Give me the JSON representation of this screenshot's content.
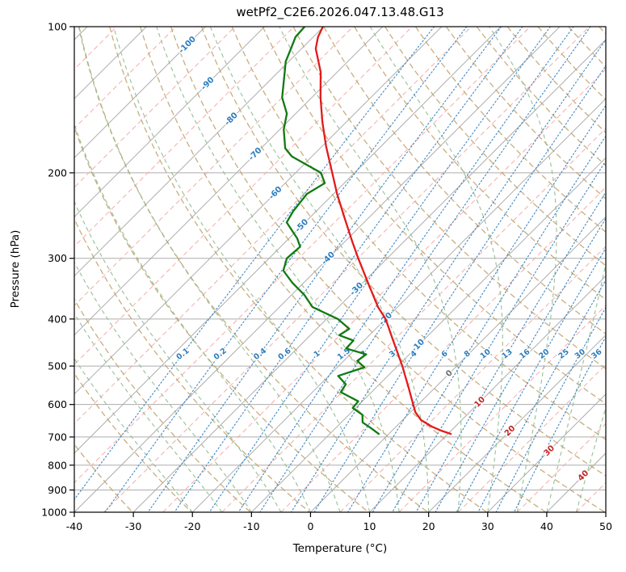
{
  "chart_data": {
    "type": "line",
    "title": "wetPf2_C2E6.2026.047.13.48.G13",
    "xlabel": "Temperature (°C)",
    "ylabel": "Pressure (hPa)",
    "x_range": [
      -40,
      50
    ],
    "p_range": [
      100,
      1000
    ],
    "y_scale": "log",
    "skew_degrees": 45,
    "x_ticks": [
      -40,
      -30,
      -20,
      -10,
      0,
      10,
      20,
      30,
      40,
      50
    ],
    "y_ticks": [
      100,
      200,
      300,
      400,
      500,
      600,
      700,
      800,
      900,
      1000
    ],
    "series": [
      {
        "name": "temperature",
        "color": "#e31a1a",
        "units": {
          "p": "hPa",
          "t": "degC"
        },
        "points": [
          [
            100,
            -80.1
          ],
          [
            105,
            -79.2
          ],
          [
            111,
            -77.6
          ],
          [
            124,
            -72.8
          ],
          [
            140,
            -68.5
          ],
          [
            157,
            -64.1
          ],
          [
            176,
            -59.4
          ],
          [
            199,
            -54.0
          ],
          [
            221,
            -49.4
          ],
          [
            248,
            -44.0
          ],
          [
            278,
            -38.6
          ],
          [
            300,
            -34.9
          ],
          [
            337,
            -29.1
          ],
          [
            378,
            -23.3
          ],
          [
            400,
            -20.0
          ],
          [
            440,
            -15.4
          ],
          [
            470,
            -12.2
          ],
          [
            500,
            -9.2
          ],
          [
            555,
            -4.4
          ],
          [
            598,
            -1.0
          ],
          [
            622,
            0.8
          ],
          [
            646,
            3.1
          ],
          [
            666,
            6.0
          ],
          [
            679,
            8.3
          ],
          [
            690,
            10.5
          ]
        ]
      },
      {
        "name": "dewpoint",
        "color": "#117a11",
        "units": {
          "p": "hPa",
          "t": "degC"
        },
        "points": [
          [
            100,
            -83.2
          ],
          [
            105,
            -83.0
          ],
          [
            111,
            -81.8
          ],
          [
            118,
            -80.5
          ],
          [
            124,
            -78.9
          ],
          [
            140,
            -75.0
          ],
          [
            151,
            -71.5
          ],
          [
            163,
            -69.3
          ],
          [
            178,
            -65.9
          ],
          [
            185,
            -63.4
          ],
          [
            200,
            -55.7
          ],
          [
            210,
            -53.3
          ],
          [
            221,
            -54.5
          ],
          [
            240,
            -53.9
          ],
          [
            253,
            -53.1
          ],
          [
            273,
            -48.6
          ],
          [
            284,
            -46.7
          ],
          [
            300,
            -47.0
          ],
          [
            318,
            -45.5
          ],
          [
            337,
            -41.9
          ],
          [
            357,
            -37.8
          ],
          [
            378,
            -34.4
          ],
          [
            400,
            -28.1
          ],
          [
            419,
            -24.5
          ],
          [
            432,
            -25.1
          ],
          [
            443,
            -21.8
          ],
          [
            460,
            -21.7
          ],
          [
            473,
            -17.3
          ],
          [
            488,
            -17.7
          ],
          [
            503,
            -15.4
          ],
          [
            524,
            -18.4
          ],
          [
            545,
            -15.7
          ],
          [
            566,
            -15.2
          ],
          [
            591,
            -10.7
          ],
          [
            610,
            -10.5
          ],
          [
            630,
            -7.7
          ],
          [
            653,
            -6.4
          ],
          [
            671,
            -4.0
          ],
          [
            690,
            -1.7
          ]
        ]
      }
    ],
    "background_lines": {
      "isotherms_c": {
        "start": -130,
        "stop": 50,
        "step": 10
      },
      "isotherms_minor_c": {
        "start": -125,
        "stop": 45,
        "step": 10
      },
      "dry_adiabats_k": {
        "start": 233,
        "stop": 533,
        "step": 10
      },
      "moist_adiabats_c": {
        "start": -20,
        "stop": 45,
        "step": 5
      },
      "mixing_ratio_g_kg": [
        0.1,
        0.2,
        0.4,
        0.6,
        1,
        1.5,
        2,
        3,
        4,
        6,
        8,
        10,
        13,
        16,
        20,
        25,
        30,
        36
      ]
    },
    "isotherm_labels": [
      {
        "t": -100,
        "p": 109
      },
      {
        "t": -90,
        "p": 131
      },
      {
        "t": -80,
        "p": 155
      },
      {
        "t": -70,
        "p": 183
      },
      {
        "t": -60,
        "p": 220
      },
      {
        "t": -50,
        "p": 257
      },
      {
        "t": -40,
        "p": 300
      },
      {
        "t": -30,
        "p": 347
      },
      {
        "t": -20,
        "p": 400
      },
      {
        "t": -10,
        "p": 454
      },
      {
        "t": 0,
        "p": 518
      },
      {
        "t": 10,
        "p": 593
      },
      {
        "t": 20,
        "p": 680
      },
      {
        "t": 30,
        "p": 747
      },
      {
        "t": 40,
        "p": 841
      }
    ],
    "mixing_label_pressure": 472,
    "colors": {
      "grid": "#adadad",
      "spine": "#000000",
      "isotherm_minor": "#f2a49e",
      "dry_adiabat": "#bfa06a",
      "moist_adiabat": "#8fbc8f",
      "mixing_line": "#3d85c0",
      "mixing_label": "#2d7dbd",
      "isotherm_label_neg": "#2d7dbd",
      "isotherm_label_zero": "#6e6e6e",
      "isotherm_label_pos": "#bf2626",
      "tick_text": "#000000"
    }
  }
}
